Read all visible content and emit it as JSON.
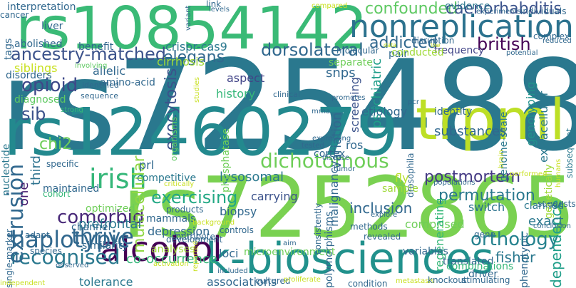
{
  "words": [
    {
      "text": "rs7254880",
      "color": "#2a788e"
    },
    {
      "text": "rs10854142",
      "color": "#3aba76"
    },
    {
      "text": "rs12460279",
      "color": "#23898e"
    },
    {
      "text": "rs7252865",
      "color": "#7ad151"
    },
    {
      "text": "k-biosciences",
      "color": "#21918c"
    },
    {
      "text": "trpml",
      "color": "#bddf26"
    },
    {
      "text": "nonreplication",
      "color": "#2c728e"
    },
    {
      "text": "ancestry-matched",
      "color": "#3b528b"
    },
    {
      "text": "alcohol",
      "color": "#440154"
    },
    {
      "text": "irish",
      "color": "#35b779"
    },
    {
      "text": "dichotomous",
      "color": "#6ece58"
    },
    {
      "text": "thrive",
      "color": "#31688e"
    },
    {
      "text": "exercising",
      "color": "#22a884"
    },
    {
      "text": "haplotypic",
      "color": "#31688e"
    },
    {
      "text": "recognised",
      "color": "#2a788e"
    },
    {
      "text": "comorbid",
      "color": "#482878"
    },
    {
      "text": "extrusion",
      "color": "#31688e"
    },
    {
      "text": "confounded",
      "color": "#5ec962"
    },
    {
      "text": "caenorhabditis",
      "color": "#3b528b"
    },
    {
      "text": "dorsolateral",
      "color": "#31688e"
    },
    {
      "text": "british",
      "color": "#440154"
    },
    {
      "text": "addicted",
      "color": "#31688e"
    },
    {
      "text": "opioid",
      "color": "#3e4989"
    },
    {
      "text": "sib",
      "color": "#3b528b"
    },
    {
      "text": "chi2",
      "color": "#6ece58"
    },
    {
      "text": "postmortem",
      "color": "#443983"
    },
    {
      "text": "permutation",
      "color": "#2a788e"
    },
    {
      "text": "orthology",
      "color": "#26828e"
    },
    {
      "text": "fisher",
      "color": "#2a788e"
    },
    {
      "text": "exocytosis",
      "color": "#3b528b"
    },
    {
      "text": "multicellular",
      "color": "#90d743"
    },
    {
      "text": "elegans",
      "color": "#31688e"
    },
    {
      "text": "crispr-cas9",
      "color": "#2a788e"
    },
    {
      "text": "cirrhosis",
      "color": "#a0da39"
    },
    {
      "text": "siblings",
      "color": "#c8e020"
    },
    {
      "text": "psychiatric",
      "color": "#1f9e89"
    },
    {
      "text": "substances",
      "color": "#31688e"
    },
    {
      "text": "inclusion",
      "color": "#31688e"
    },
    {
      "text": "dependence",
      "color": "#1f9e89"
    },
    {
      "text": "lysosomal",
      "color": "#2a788e"
    },
    {
      "text": "optimized",
      "color": "#6ece58"
    },
    {
      "text": "prefrontal",
      "color": "#2a788e"
    },
    {
      "text": "depression",
      "color": "#31688e"
    },
    {
      "text": "variation",
      "color": "#31688e"
    },
    {
      "text": "snps",
      "color": "#31688e"
    },
    {
      "text": "frequency",
      "color": "#414487"
    },
    {
      "text": "separate",
      "color": "#6ece58"
    },
    {
      "text": "screening",
      "color": "#3b528b"
    },
    {
      "text": "exact",
      "color": "#2a788e"
    },
    {
      "text": "co-occurrence",
      "color": "#35b779"
    },
    {
      "text": "tolerance",
      "color": "#2a788e"
    },
    {
      "text": "associations",
      "color": "#31688e"
    },
    {
      "text": "third",
      "color": "#2c728e"
    },
    {
      "text": "one",
      "color": "#481f70"
    },
    {
      "text": "evidence",
      "color": "#2a788e"
    },
    {
      "text": "genotyping",
      "color": "#21918c"
    },
    {
      "text": "extracellular",
      "color": "#2a788e"
    },
    {
      "text": "genome-scale",
      "color": "#2a788e"
    },
    {
      "text": "switch",
      "color": "#2c728e"
    },
    {
      "text": "comprised",
      "color": "#6ece58"
    },
    {
      "text": "regenerating",
      "color": "#35b779"
    },
    {
      "text": "carrying",
      "color": "#3b528b"
    },
    {
      "text": "biopsy",
      "color": "#31688e"
    },
    {
      "text": "malignancy",
      "color": "#31688e"
    },
    {
      "text": "etiology",
      "color": "#31688e"
    },
    {
      "text": "cortex",
      "color": "#31688e"
    },
    {
      "text": "identity",
      "color": "#31688e"
    },
    {
      "text": "ros",
      "color": "#31688e"
    },
    {
      "text": "fly",
      "color": "#b5de2b"
    },
    {
      "text": "sample",
      "color": "#a0da39"
    },
    {
      "text": "history",
      "color": "#35b779"
    },
    {
      "text": "aspect",
      "color": "#414487"
    },
    {
      "text": "allelic",
      "color": "#31688e"
    },
    {
      "text": "amino-acid",
      "color": "#31688e"
    },
    {
      "text": "prl",
      "color": "#31688e"
    },
    {
      "text": "maintained",
      "color": "#31688e"
    },
    {
      "text": "competitive",
      "color": "#2a788e"
    },
    {
      "text": "mammals",
      "color": "#31688e"
    },
    {
      "text": "channel",
      "color": "#31688e"
    },
    {
      "text": "similarity",
      "color": "#31688e"
    },
    {
      "text": "analyses",
      "color": "#a0da39"
    },
    {
      "text": "loci",
      "color": "#31688e"
    },
    {
      "text": "polymorphisms",
      "color": "#31688e"
    },
    {
      "text": "microenvironment",
      "color": "#6ece58"
    },
    {
      "text": "variables",
      "color": "#31688e"
    },
    {
      "text": "translated",
      "color": "#31688e"
    },
    {
      "text": "combinations",
      "color": "#35b779"
    },
    {
      "text": "driver",
      "color": "#31688e"
    },
    {
      "text": "clarified",
      "color": "#2a788e"
    },
    {
      "text": "suggests",
      "color": "#31688e"
    },
    {
      "text": "phenotypic",
      "color": "#31688e"
    },
    {
      "text": "genetically",
      "color": "#a0da39"
    },
    {
      "text": "subsequent",
      "color": "#2a788e"
    },
    {
      "text": "diagnosed",
      "color": "#5ec962"
    },
    {
      "text": "disorders",
      "color": "#31688e"
    },
    {
      "text": "nucleotide",
      "color": "#2a788e"
    },
    {
      "text": "cohort",
      "color": "#35b779"
    },
    {
      "text": "single-marker",
      "color": "#31688e"
    },
    {
      "text": "adapt",
      "color": "#31688e"
    },
    {
      "text": "species",
      "color": "#31688e"
    },
    {
      "text": "benefit",
      "color": "#31688e"
    },
    {
      "text": "liver",
      "color": "#31688e"
    },
    {
      "text": "abolished",
      "color": "#31688e"
    },
    {
      "text": "tags",
      "color": "#31688e"
    },
    {
      "text": "interpretation",
      "color": "#31688e"
    },
    {
      "text": "cancer",
      "color": "#31688e"
    },
    {
      "text": "identified",
      "color": "#31688e"
    },
    {
      "text": "sequence",
      "color": "#31688e"
    },
    {
      "text": "strong",
      "color": "#35b779"
    },
    {
      "text": "involving",
      "color": "#5ec962"
    },
    {
      "text": "organisms",
      "color": "#5ec962"
    },
    {
      "text": "phosphatase",
      "color": "#6ece58"
    },
    {
      "text": "studies",
      "color": "#c8e020"
    },
    {
      "text": "molecular",
      "color": "#31688e"
    },
    {
      "text": "pair",
      "color": "#31688e"
    },
    {
      "text": "conducted",
      "color": "#a0da39"
    },
    {
      "text": "disruption",
      "color": "#31688e"
    },
    {
      "text": "experiments",
      "color": "#31688e"
    },
    {
      "text": "individuals",
      "color": "#31688e"
    },
    {
      "text": "complex",
      "color": "#31688e"
    },
    {
      "text": "reduced",
      "color": "#31688e"
    },
    {
      "text": "potential",
      "color": "#31688e"
    },
    {
      "text": "promotes",
      "color": "#31688e"
    },
    {
      "text": "mrna",
      "color": "#31688e"
    },
    {
      "text": "pcr",
      "color": "#31688e"
    },
    {
      "text": "clinical",
      "color": "#31688e"
    },
    {
      "text": "brain",
      "color": "#c8e020"
    },
    {
      "text": "expressing",
      "color": "#31688e"
    },
    {
      "text": "tested",
      "color": "#31688e"
    },
    {
      "text": "disease",
      "color": "#31688e"
    },
    {
      "text": "tumor",
      "color": "#31688e"
    },
    {
      "text": "drosophila",
      "color": "#31688e"
    },
    {
      "text": "populations",
      "color": "#31688e"
    },
    {
      "text": "performed",
      "color": "#c8e020"
    },
    {
      "text": "humans",
      "color": "#c8e020"
    },
    {
      "text": "gene",
      "color": "#31688e"
    },
    {
      "text": "conclusion",
      "color": "#31688e"
    },
    {
      "text": "explore",
      "color": "#31688e"
    },
    {
      "text": "revealed",
      "color": "#31688e"
    },
    {
      "text": "consistently",
      "color": "#31688e"
    },
    {
      "text": "controls",
      "color": "#31688e"
    },
    {
      "text": "methods",
      "color": "#31688e"
    },
    {
      "text": "aim",
      "color": "#31688e"
    },
    {
      "text": "development",
      "color": "#31688e"
    },
    {
      "text": "contribute",
      "color": "#31688e"
    },
    {
      "text": "products",
      "color": "#31688e"
    },
    {
      "text": "background",
      "color": "#c8e020"
    },
    {
      "text": "reported",
      "color": "#c8e020"
    },
    {
      "text": "activation",
      "color": "#c8e020"
    },
    {
      "text": "observed",
      "color": "#31688e"
    },
    {
      "text": "independent",
      "color": "#c8e020"
    },
    {
      "text": "included",
      "color": "#31688e"
    },
    {
      "text": "cultured",
      "color": "#31688e"
    },
    {
      "text": "proliferate",
      "color": "#c8e020"
    },
    {
      "text": "condition",
      "color": "#31688e"
    },
    {
      "text": "metastasis",
      "color": "#c8e020"
    },
    {
      "text": "knockout",
      "color": "#31688e"
    },
    {
      "text": "stimulating",
      "color": "#31688e"
    },
    {
      "text": "specific",
      "color": "#31688e"
    },
    {
      "text": "critically",
      "color": "#c8e020"
    },
    {
      "text": "variant",
      "color": "#31688e"
    },
    {
      "text": "link",
      "color": "#31688e"
    },
    {
      "text": "levels",
      "color": "#31688e"
    },
    {
      "text": "compared",
      "color": "#c8e020"
    },
    {
      "text": "data",
      "color": "#c8e020"
    },
    {
      "text": "low",
      "color": "#c8e020"
    }
  ]
}
